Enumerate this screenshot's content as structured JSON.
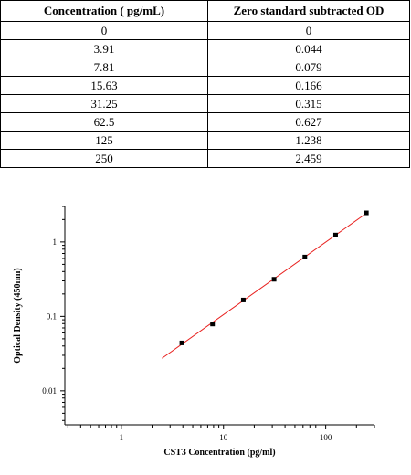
{
  "table": {
    "headers": [
      "Concentration ( pg/mL)",
      "Zero standard subtracted OD"
    ],
    "rows": [
      [
        "0",
        "0"
      ],
      [
        "3.91",
        "0.044"
      ],
      [
        "7.81",
        "0.079"
      ],
      [
        "15.63",
        "0.166"
      ],
      [
        "31.25",
        "0.315"
      ],
      [
        "62.5",
        "0.627"
      ],
      [
        "125",
        "1.238"
      ],
      [
        "250",
        "2.459"
      ]
    ]
  },
  "chart_data": {
    "type": "scatter",
    "title": "",
    "xlabel": "CST3 Concentration (pg/ml)",
    "ylabel": "Optical Density (450nm)",
    "xscale": "log",
    "yscale": "log",
    "xlim": [
      0.28,
      300
    ],
    "ylim": [
      0.0035,
      3
    ],
    "xticks": [
      1,
      10,
      100
    ],
    "xtick_labels": [
      "1",
      "10",
      "100"
    ],
    "yticks": [
      0.01,
      0.1,
      1
    ],
    "ytick_labels": [
      "0.01",
      "0.1",
      "1"
    ],
    "grid": false,
    "series": [
      {
        "x": [
          3.91,
          7.81,
          15.63,
          31.25,
          62.5,
          125,
          250
        ],
        "y": [
          0.044,
          0.079,
          0.166,
          0.315,
          0.627,
          1.238,
          2.459
        ],
        "marker": "square",
        "color": "#000000"
      }
    ],
    "fit_line": {
      "color": "#e8211f",
      "x_range": [
        2.5,
        250
      ]
    }
  }
}
